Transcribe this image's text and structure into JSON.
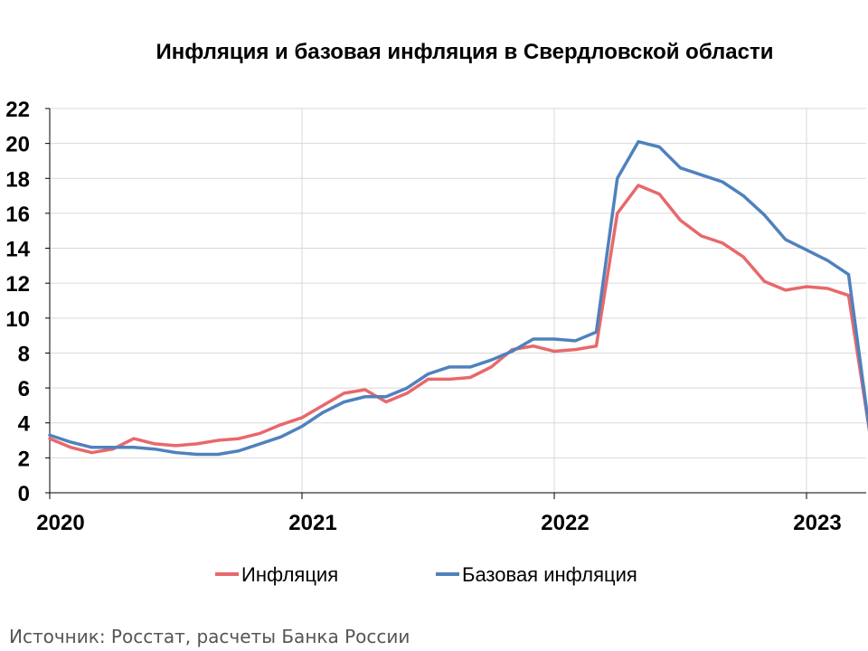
{
  "chart_data": {
    "type": "line",
    "title": "Инфляция и базовая инфляция в Свердловской области",
    "xlabel": "",
    "ylabel": "",
    "ylim": [
      0,
      22
    ],
    "yticks": [
      0,
      2,
      4,
      6,
      8,
      10,
      12,
      14,
      16,
      18,
      20,
      22
    ],
    "x_ticks": [
      "2020",
      "2021",
      "2022",
      "2023"
    ],
    "x": [
      "2020-01",
      "2020-02",
      "2020-03",
      "2020-04",
      "2020-05",
      "2020-06",
      "2020-07",
      "2020-08",
      "2020-09",
      "2020-10",
      "2020-11",
      "2020-12",
      "2021-01",
      "2021-02",
      "2021-03",
      "2021-04",
      "2021-05",
      "2021-06",
      "2021-07",
      "2021-08",
      "2021-09",
      "2021-10",
      "2021-11",
      "2021-12",
      "2022-01",
      "2022-02",
      "2022-03",
      "2022-04",
      "2022-05",
      "2022-06",
      "2022-07",
      "2022-08",
      "2022-09",
      "2022-10",
      "2022-11",
      "2022-12",
      "2023-01",
      "2023-02",
      "2023-03"
    ],
    "grid": true,
    "legend_position": "bottom",
    "series": [
      {
        "name": "Инфляция",
        "color": "#e8686b",
        "values": [
          3.1,
          2.6,
          2.3,
          2.5,
          3.1,
          2.8,
          2.7,
          2.8,
          3.0,
          3.1,
          3.4,
          3.9,
          4.3,
          5.0,
          5.7,
          5.9,
          5.2,
          5.7,
          6.5,
          6.5,
          6.6,
          7.2,
          8.2,
          8.4,
          8.1,
          8.2,
          8.4,
          16.0,
          17.6,
          17.1,
          15.6,
          14.7,
          14.3,
          13.5,
          12.1,
          11.6,
          11.8,
          11.7,
          11.3
        ]
      },
      {
        "name": "Базовая инфляция",
        "color": "#4f81bd",
        "values": [
          3.3,
          2.9,
          2.6,
          2.6,
          2.6,
          2.5,
          2.3,
          2.2,
          2.2,
          2.4,
          2.8,
          3.2,
          3.8,
          4.6,
          5.2,
          5.5,
          5.5,
          6.0,
          6.8,
          7.2,
          7.2,
          7.6,
          8.1,
          8.8,
          8.8,
          8.7,
          9.2,
          18.0,
          20.1,
          19.8,
          18.6,
          18.2,
          17.8,
          17.0,
          15.9,
          14.5,
          13.9,
          13.3,
          12.5
        ]
      }
    ],
    "final_point": {
      "x": "2023-04",
      "value": 3.5
    }
  },
  "source_text": "Источник: Росстат, расчеты Банка России"
}
